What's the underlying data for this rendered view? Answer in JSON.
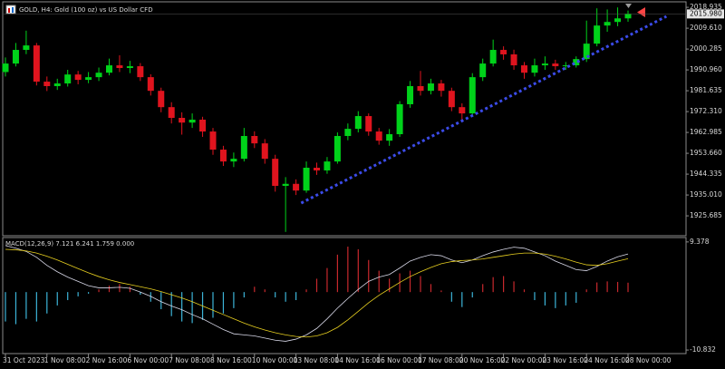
{
  "chart_data": [
    {
      "type": "candlestick",
      "title": "GOLD, H4:  Gold (100 oz) vs US Dollar CFD",
      "categories": [
        "31 Oct 2023",
        null,
        null,
        null,
        "1 Nov 08:00",
        null,
        null,
        null,
        "2 Nov 16:00",
        null,
        null,
        null,
        "6 Nov 00:00",
        null,
        null,
        null,
        "7 Nov 08:00",
        null,
        null,
        null,
        "8 Nov 16:00",
        null,
        null,
        null,
        "10 Nov 00:00",
        null,
        null,
        null,
        "13 Nov 08:00",
        null,
        null,
        null,
        "14 Nov 16:00",
        null,
        null,
        null,
        "16 Nov 00:00",
        null,
        null,
        null,
        "17 Nov 08:00",
        null,
        null,
        null,
        "20 Nov 16:00",
        null,
        null,
        null,
        "22 Nov 00:00",
        null,
        null,
        null,
        "23 Nov 16:00",
        null,
        null,
        null,
        "24 Nov 16:00",
        null,
        null,
        null,
        "28 Nov 00:00"
      ],
      "open": [
        1990.0,
        1993.8,
        1999.9,
        2001.9,
        1985.7,
        1983.7,
        1984.9,
        1988.9,
        1986.5,
        1987.7,
        1989.7,
        1993.0,
        1991.8,
        1992.6,
        1987.7,
        1981.6,
        1974.3,
        1969.5,
        1967.4,
        1968.7,
        1963.4,
        1955.3,
        1950.0,
        1951.2,
        1961.4,
        1958.1,
        1951.2,
        1939.1,
        1940.0,
        1937.0,
        1947.2,
        1946.0,
        1950.0,
        1961.4,
        1964.6,
        1970.3,
        1963.4,
        1959.3,
        1962.2,
        1975.6,
        1983.7,
        1981.6,
        1984.9,
        1981.6,
        1974.3,
        1971.5,
        1987.7,
        1993.8,
        1999.9,
        1997.9,
        1993.0,
        1989.7,
        1993.0,
        1993.8,
        1992.6,
        1993.0,
        1995.8,
        2002.7,
        2010.8,
        2012.4,
        2014.0
      ],
      "high": [
        1996.5,
        2003.0,
        2008.5,
        2003.0,
        1988.0,
        1987.0,
        1991.0,
        1990.5,
        1990.0,
        1992.0,
        1996.0,
        1997.5,
        1995.0,
        1994.0,
        1989.0,
        1983.0,
        1976.5,
        1972.0,
        1971.5,
        1970.0,
        1965.0,
        1957.0,
        1954.0,
        1965.0,
        1963.5,
        1960.0,
        1953.0,
        1943.0,
        1942.0,
        1950.0,
        1949.5,
        1952.0,
        1963.0,
        1967.0,
        1972.5,
        1971.5,
        1965.0,
        1964.5,
        1977.0,
        1986.0,
        1990.5,
        1987.0,
        1986.5,
        1983.0,
        1976.0,
        1989.5,
        1996.0,
        2004.5,
        2001.5,
        2000.0,
        1994.5,
        1996.0,
        1997.0,
        1995.5,
        1994.5,
        1997.0,
        2013.0,
        2018.5,
        2018.0,
        2018.9,
        2017.5
      ],
      "low": [
        1988.0,
        1992.5,
        1998.0,
        1984.0,
        1981.5,
        1982.0,
        1983.5,
        1984.5,
        1985.0,
        1986.0,
        1988.5,
        1990.0,
        1989.5,
        1986.0,
        1979.5,
        1972.0,
        1967.0,
        1962.0,
        1965.0,
        1961.0,
        1953.0,
        1948.0,
        1947.5,
        1950.0,
        1956.0,
        1949.0,
        1936.5,
        1918.5,
        1935.0,
        1936.0,
        1944.0,
        1944.5,
        1949.0,
        1959.5,
        1963.0,
        1961.5,
        1957.5,
        1957.0,
        1961.0,
        1974.0,
        1979.5,
        1980.0,
        1979.0,
        1972.5,
        1967.5,
        1970.5,
        1986.0,
        1992.5,
        1995.5,
        1991.0,
        1987.0,
        1988.0,
        1991.0,
        1991.0,
        1991.0,
        1992.0,
        1994.5,
        2001.5,
        2008.0,
        2010.5,
        2012.5
      ],
      "close": [
        1993.8,
        1999.9,
        2001.9,
        1985.7,
        1983.7,
        1984.9,
        1988.9,
        1986.5,
        1987.7,
        1989.7,
        1993.0,
        1991.8,
        1992.6,
        1987.7,
        1981.6,
        1974.3,
        1969.5,
        1967.4,
        1968.7,
        1963.4,
        1955.3,
        1950.0,
        1951.2,
        1961.4,
        1958.1,
        1951.2,
        1939.1,
        1940.0,
        1937.0,
        1947.2,
        1946.0,
        1950.0,
        1961.4,
        1964.6,
        1970.3,
        1963.4,
        1959.3,
        1962.2,
        1975.6,
        1983.7,
        1981.6,
        1984.9,
        1981.6,
        1974.3,
        1971.5,
        1987.7,
        1993.8,
        1999.9,
        1997.9,
        1993.0,
        1989.7,
        1993.0,
        1993.8,
        1992.6,
        1993.0,
        1995.8,
        2002.7,
        2010.8,
        2012.4,
        2014.0,
        2015.98
      ],
      "up_color": "#00d21a",
      "down_color": "#e0141e",
      "ylim": [
        1917.2,
        2021.0
      ],
      "yticks": [
        {
          "value": 2018.935,
          "label": "2018.935"
        },
        {
          "value": 2009.61,
          "label": "2009.610"
        },
        {
          "value": 2000.285,
          "label": "2000.285"
        },
        {
          "value": 1990.96,
          "label": "1990.960"
        },
        {
          "value": 1981.635,
          "label": "1981.635"
        },
        {
          "value": 1972.31,
          "label": "1972.310"
        },
        {
          "value": 1962.985,
          "label": "1962.985"
        },
        {
          "value": 1953.66,
          "label": "1953.660"
        },
        {
          "value": 1944.335,
          "label": "1944.335"
        },
        {
          "value": 1935.01,
          "label": "1935.010"
        },
        {
          "value": 1925.685,
          "label": "1925.685"
        }
      ],
      "last_price": {
        "value": 2015.98,
        "label": "2015.980"
      },
      "trendline": {
        "x": [
          28.5,
          63.7
        ],
        "y": [
          1931.4,
          2014.9
        ],
        "color": "#3b4be8"
      }
    },
    {
      "type": "macd",
      "title": "MACD(12,26,9) 7.121 6.241 1.759 0.000",
      "histogram": {
        "values": [
          -5.5,
          -6.0,
          -5.0,
          -5.5,
          -4.0,
          -2.5,
          -1.5,
          -0.8,
          -0.3,
          0.5,
          1.2,
          1.5,
          1.0,
          -0.5,
          -1.8,
          -3.2,
          -4.5,
          -5.5,
          -5.8,
          -5.2,
          -4.8,
          -4.0,
          -3.0,
          -1.0,
          1.0,
          0.5,
          -1.0,
          -1.8,
          -1.5,
          0.5,
          2.5,
          4.5,
          7.0,
          8.5,
          8.0,
          6.0,
          4.0,
          2.5,
          3.5,
          4.0,
          3.0,
          1.5,
          0.3,
          -1.8,
          -2.8,
          -1.0,
          1.5,
          2.8,
          3.0,
          2.0,
          0.5,
          -1.5,
          -2.5,
          -3.0,
          -2.5,
          -2.0,
          0.5,
          1.8,
          2.0,
          1.9,
          1.759
        ],
        "up_color": "#c8282d",
        "down_color": "#3cb4d8"
      },
      "series": [
        {
          "color": "#d8d8e8",
          "values": [
            8.7,
            8.2,
            7.6,
            6.5,
            5.0,
            3.8,
            2.8,
            2.0,
            1.2,
            0.8,
            0.8,
            0.9,
            0.7,
            0.0,
            -0.8,
            -1.8,
            -2.6,
            -3.3,
            -4.2,
            -5.0,
            -6.0,
            -7.0,
            -7.8,
            -8.0,
            -8.2,
            -8.6,
            -9.0,
            -9.2,
            -8.8,
            -8.0,
            -6.8,
            -5.0,
            -3.0,
            -1.2,
            0.5,
            2.0,
            2.8,
            3.3,
            4.5,
            5.8,
            6.5,
            7.0,
            6.8,
            6.0,
            5.5,
            6.0,
            6.8,
            7.5,
            8.0,
            8.4,
            8.2,
            7.5,
            6.8,
            5.8,
            5.0,
            4.2,
            4.0,
            4.8,
            5.8,
            6.6,
            7.121
          ]
        },
        {
          "color": "#e8d020",
          "values": [
            8.0,
            7.9,
            7.7,
            7.3,
            6.7,
            6.0,
            5.2,
            4.4,
            3.6,
            2.9,
            2.3,
            1.8,
            1.4,
            1.0,
            0.6,
            0.1,
            -0.5,
            -1.1,
            -1.8,
            -2.6,
            -3.4,
            -4.2,
            -5.0,
            -5.8,
            -6.5,
            -7.1,
            -7.6,
            -8.0,
            -8.3,
            -8.4,
            -8.2,
            -7.6,
            -6.6,
            -5.2,
            -3.6,
            -2.0,
            -0.6,
            0.6,
            1.8,
            2.9,
            3.8,
            4.6,
            5.3,
            5.7,
            5.9,
            6.0,
            6.2,
            6.5,
            6.8,
            7.1,
            7.3,
            7.3,
            7.1,
            6.7,
            6.2,
            5.6,
            5.1,
            5.0,
            5.3,
            5.8,
            6.241
          ]
        }
      ],
      "ylim": [
        -11.5,
        10.2
      ],
      "yticks": [
        9.378,
        -10.832
      ]
    }
  ]
}
